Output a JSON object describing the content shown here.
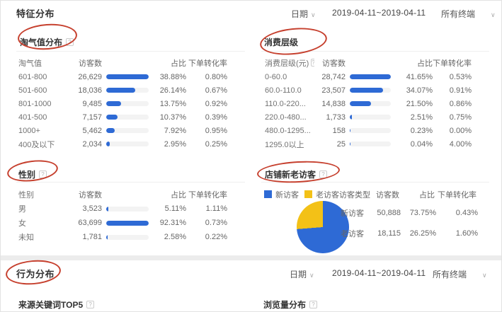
{
  "colors": {
    "bar_blue": "#2e6ad5",
    "pie_yellow": "#f3c117",
    "annotation_red": "#c6402e"
  },
  "feature_header": {
    "title": "特征分布",
    "date_label": "日期",
    "date_range": "2019-04-11~2019-04-11",
    "terminal": "所有终端"
  },
  "behavior_header": {
    "title": "行为分布",
    "date_label": "日期",
    "date_range": "2019-04-11~2019-04-11",
    "terminal": "所有终端"
  },
  "help_glyph": "?",
  "caret_glyph": "∨",
  "tables": {
    "taoqi": {
      "title": "淘气值分布",
      "col_label": "淘气值",
      "col_visitors": "访客数",
      "col_share": "占比",
      "col_cvr": "下单转化率",
      "rows": [
        {
          "label": "601-800",
          "visitors": "26,629",
          "bar_pct": 100,
          "share": "38.88%",
          "cvr": "0.80%"
        },
        {
          "label": "501-600",
          "visitors": "18,036",
          "bar_pct": 67.7,
          "share": "26.14%",
          "cvr": "0.67%"
        },
        {
          "label": "801-1000",
          "visitors": "9,485",
          "bar_pct": 35.6,
          "share": "13.75%",
          "cvr": "0.92%"
        },
        {
          "label": "401-500",
          "visitors": "7,157",
          "bar_pct": 26.9,
          "share": "10.37%",
          "cvr": "0.39%"
        },
        {
          "label": "1000+",
          "visitors": "5,462",
          "bar_pct": 20.5,
          "share": "7.92%",
          "cvr": "0.95%"
        },
        {
          "label": "400及以下",
          "visitors": "2,034",
          "bar_pct": 7.6,
          "share": "2.95%",
          "cvr": "0.25%"
        }
      ]
    },
    "consumption": {
      "title": "消费层级",
      "col_label": "消费层级(元)",
      "col_visitors": "访客数",
      "col_share": "占比",
      "col_cvr": "下单转化率",
      "rows": [
        {
          "label": "0-60.0",
          "visitors": "28,742",
          "bar_pct": 100,
          "share": "41.65%",
          "cvr": "0.53%"
        },
        {
          "label": "60.0-110.0",
          "visitors": "23,507",
          "bar_pct": 81.8,
          "share": "34.07%",
          "cvr": "0.91%"
        },
        {
          "label": "110.0-220...",
          "visitors": "14,838",
          "bar_pct": 51.6,
          "share": "21.50%",
          "cvr": "0.86%"
        },
        {
          "label": "220.0-480...",
          "visitors": "1,733",
          "bar_pct": 6.0,
          "share": "2.51%",
          "cvr": "0.75%"
        },
        {
          "label": "480.0-1295...",
          "visitors": "158",
          "bar_pct": 0.6,
          "share": "0.23%",
          "cvr": "0.00%"
        },
        {
          "label": "1295.0以上",
          "visitors": "25",
          "bar_pct": 0.2,
          "share": "0.04%",
          "cvr": "4.00%"
        }
      ]
    },
    "gender": {
      "title": "性别",
      "col_label": "性别",
      "col_visitors": "访客数",
      "col_share": "占比",
      "col_cvr": "下单转化率",
      "rows": [
        {
          "label": "男",
          "visitors": "3,523",
          "bar_pct": 5.5,
          "share": "5.11%",
          "cvr": "1.11%"
        },
        {
          "label": "女",
          "visitors": "63,699",
          "bar_pct": 100,
          "share": "92.31%",
          "cvr": "0.73%"
        },
        {
          "label": "未知",
          "visitors": "1,781",
          "bar_pct": 2.8,
          "share": "2.58%",
          "cvr": "0.22%"
        }
      ]
    },
    "visitors": {
      "title": "店铺新老访客",
      "legend_new": "新访客",
      "legend_old": "老访客",
      "col_label": "访客类型",
      "col_visitors": "访客数",
      "col_share": "占比",
      "col_cvr": "下单转化率",
      "pie": {
        "new_pct": 73.75,
        "old_pct": 26.25
      },
      "rows": [
        {
          "label": "新访客",
          "visitors": "50,888",
          "share": "73.75%",
          "cvr": "0.43%"
        },
        {
          "label": "老访客",
          "visitors": "18,115",
          "share": "26.25%",
          "cvr": "1.60%"
        }
      ]
    }
  },
  "behavior_links": {
    "keywords": "来源关键词TOP5",
    "pageviews": "浏览量分布"
  }
}
